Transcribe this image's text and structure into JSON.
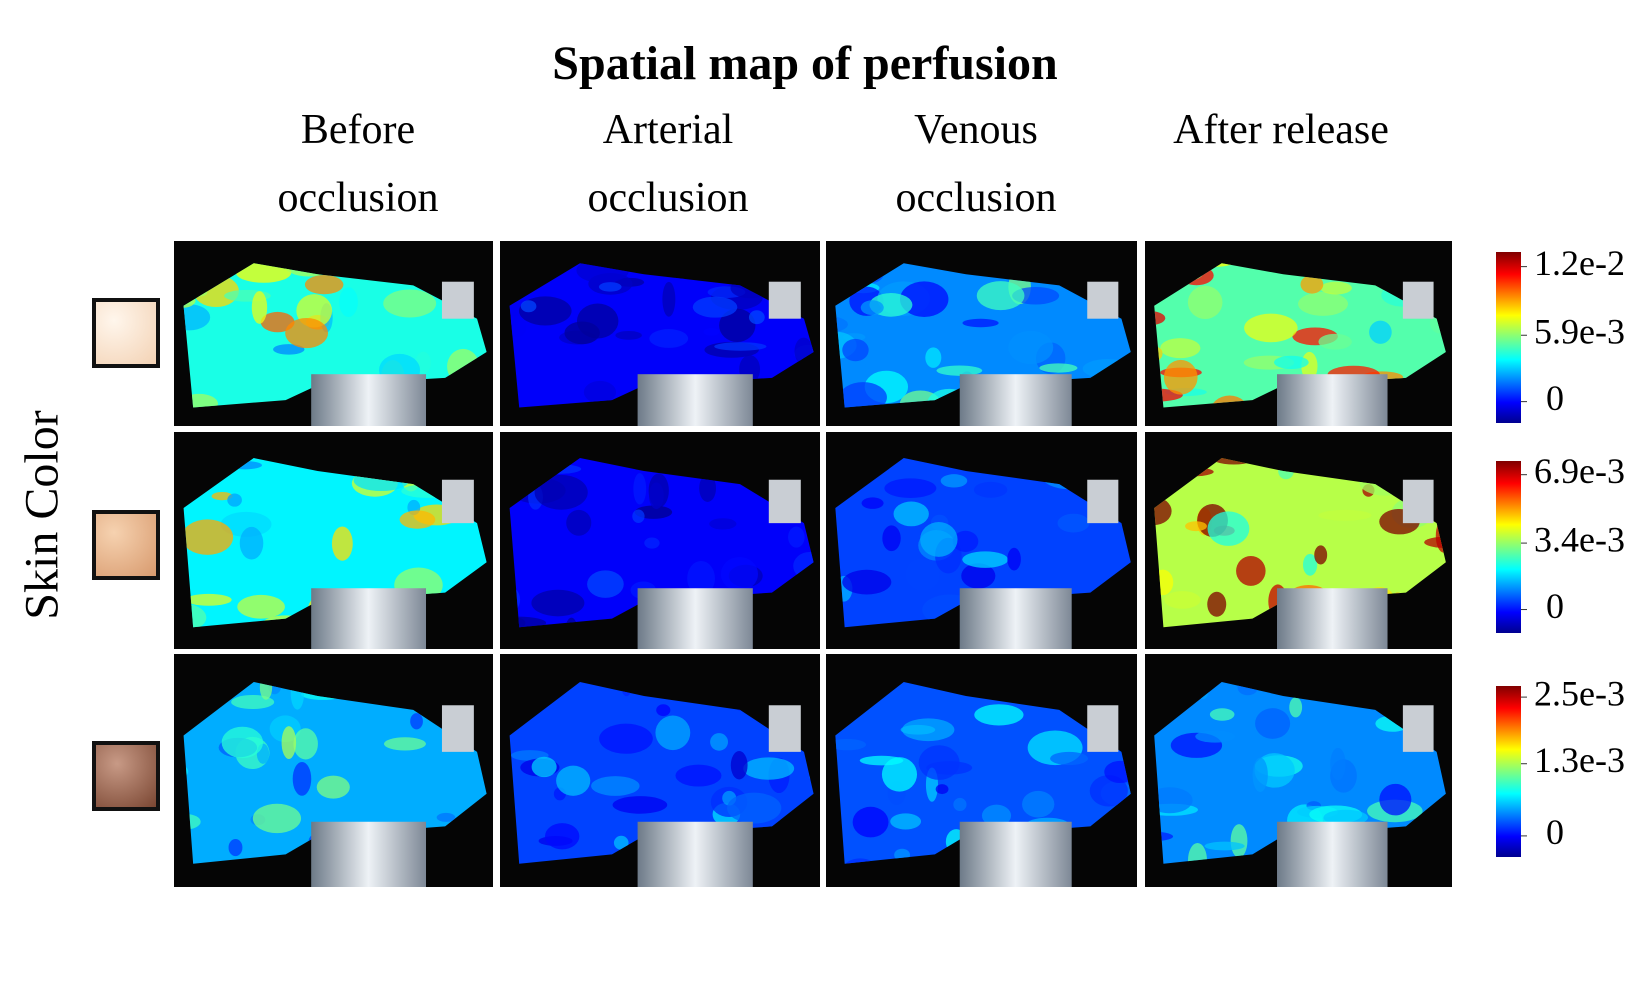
{
  "title": "Spatial map of perfusion",
  "columns": [
    "Before occlusion",
    "Arterial occlusion",
    "Venous occlusion",
    "After release"
  ],
  "row_label": "Skin Color",
  "colorbars": [
    {
      "lim": [
        -0.0019,
        0.0133
      ],
      "ticks": [
        {
          "value": 0.012,
          "label": "1.2e-2"
        },
        {
          "value": 0.0059,
          "label": "5.9e-3"
        },
        0
      ]
    },
    {
      "lim": [
        -0.0012,
        0.0076
      ],
      "ticks": [
        {
          "value": 0.0069,
          "label": "6.9e-3"
        },
        {
          "value": 0.0034,
          "label": "3.4e-3"
        },
        0
      ]
    },
    {
      "lim": [
        -0.00038,
        0.0027
      ],
      "ticks": [
        {
          "value": 0.0025,
          "label": "2.5e-3"
        },
        {
          "value": 0.0013,
          "label": "1.3e-3"
        },
        0
      ]
    }
  ]
}
